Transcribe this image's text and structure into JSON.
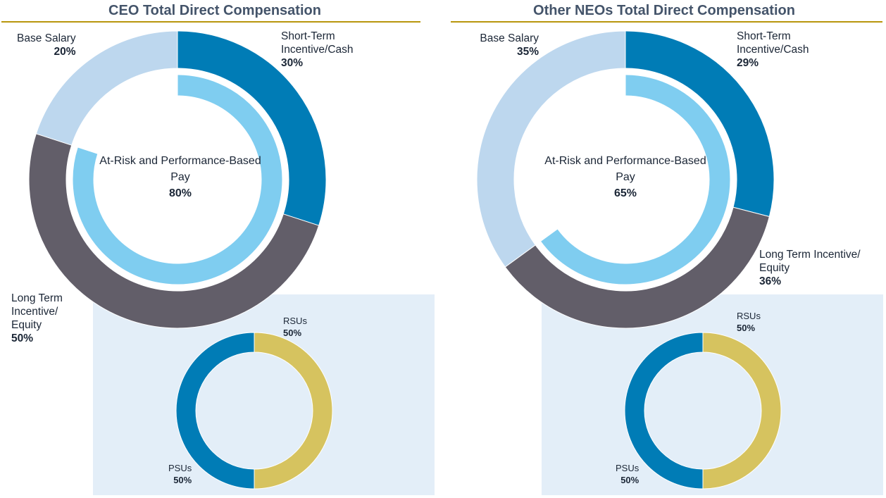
{
  "colors": {
    "base_salary": "#bdd7ee",
    "short_term": "#007cb6",
    "long_term": "#625e69",
    "at_risk": "#7fcdf0",
    "psus": "#007cb6",
    "rsus": "#d6c35f",
    "panel": "#e3eef8",
    "title": "#44546a",
    "rule": "#b8960c"
  },
  "chart_data": [
    {
      "type": "pie",
      "title": "CEO Total Direct Compensation",
      "outer": {
        "categories": [
          "Base Salary",
          "Short-Term Incentive/Cash",
          "Long Term Incentive/ Equity"
        ],
        "values": [
          20,
          30,
          50
        ],
        "labels": [
          "20%",
          "30%",
          "50%"
        ]
      },
      "inner": {
        "label": "At-Risk and Performance-Based Pay",
        "value": 80,
        "value_label": "80%"
      },
      "equity": {
        "categories": [
          "RSUs",
          "PSUs"
        ],
        "values": [
          50,
          50
        ],
        "labels": [
          "50%",
          "50%"
        ]
      }
    },
    {
      "type": "pie",
      "title": "Other NEOs Total Direct Compensation",
      "outer": {
        "categories": [
          "Base Salary",
          "Short-Term Incentive/Cash",
          "Long Term Incentive/ Equity"
        ],
        "values": [
          35,
          29,
          36
        ],
        "labels": [
          "35%",
          "29%",
          "36%"
        ]
      },
      "inner": {
        "label": "At-Risk and Performance-Based Pay",
        "value": 65,
        "value_label": "65%"
      },
      "equity": {
        "categories": [
          "RSUs",
          "PSUs"
        ],
        "values": [
          50,
          50
        ],
        "labels": [
          "50%",
          "50%"
        ]
      }
    }
  ]
}
